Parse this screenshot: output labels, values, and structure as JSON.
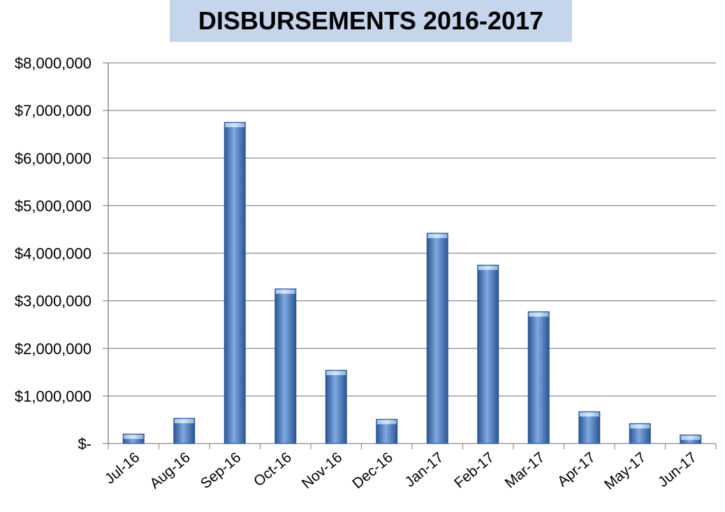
{
  "chart_data": {
    "type": "bar",
    "title": "DISBURSEMENTS 2016-2017",
    "xlabel": "",
    "ylabel": "",
    "categories": [
      "Jul-16",
      "Aug-16",
      "Sep-16",
      "Oct-16",
      "Nov-16",
      "Dec-16",
      "Jan-17",
      "Feb-17",
      "Mar-17",
      "Apr-17",
      "May-17",
      "Jun-17"
    ],
    "values": [
      200000,
      530000,
      6750000,
      3250000,
      1540000,
      510000,
      4420000,
      3750000,
      2770000,
      670000,
      420000,
      180000
    ],
    "ylim": [
      0,
      8000000
    ],
    "yticks": [
      0,
      1000000,
      2000000,
      3000000,
      4000000,
      5000000,
      6000000,
      7000000,
      8000000
    ],
    "ytick_labels": [
      "$-",
      "$1,000,000",
      "$2,000,000",
      "$3,000,000",
      "$4,000,000",
      "$5,000,000",
      "$6,000,000",
      "$7,000,000",
      "$8,000,000"
    ],
    "grid": true,
    "legend": "none",
    "colors": {
      "bar": "#4a7fc1",
      "bar_light": "#7fa9df",
      "bar_dark": "#2a5595",
      "title_bg": "#c5d5ec",
      "grid": "#8c8c8c",
      "text": "#000000"
    }
  }
}
